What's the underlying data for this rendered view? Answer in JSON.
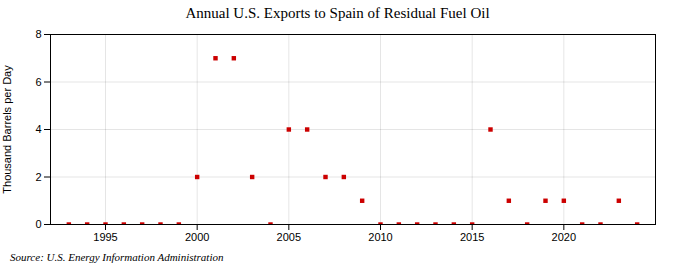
{
  "chart_data": {
    "type": "scatter",
    "title": "Annual U.S. Exports to Spain of Residual Fuel Oil",
    "ylabel": "Thousand Barrels per Day",
    "annotations": [
      "Source: U.S. Energy Information Administration"
    ],
    "x": [
      1993,
      1994,
      1995,
      1996,
      1997,
      1998,
      1999,
      2000,
      2001,
      2002,
      2003,
      2004,
      2005,
      2006,
      2007,
      2008,
      2009,
      2010,
      2011,
      2012,
      2013,
      2014,
      2015,
      2016,
      2017,
      2018,
      2019,
      2020,
      2021,
      2022,
      2023,
      2024
    ],
    "values": [
      0,
      0,
      0,
      0,
      0,
      0,
      0,
      2,
      7,
      7,
      2,
      0,
      4,
      4,
      2,
      2,
      1,
      0,
      0,
      0,
      0,
      0,
      0,
      4,
      1,
      0,
      1,
      1,
      0,
      0,
      1,
      0
    ],
    "color": "#cc0000",
    "marker": "square",
    "xlim": [
      1992,
      2025
    ],
    "ylim": [
      0,
      8
    ],
    "xticks": [
      1995,
      2000,
      2005,
      2010,
      2015,
      2020
    ],
    "yticks": [
      0,
      2,
      4,
      6,
      8
    ],
    "grid": true
  }
}
